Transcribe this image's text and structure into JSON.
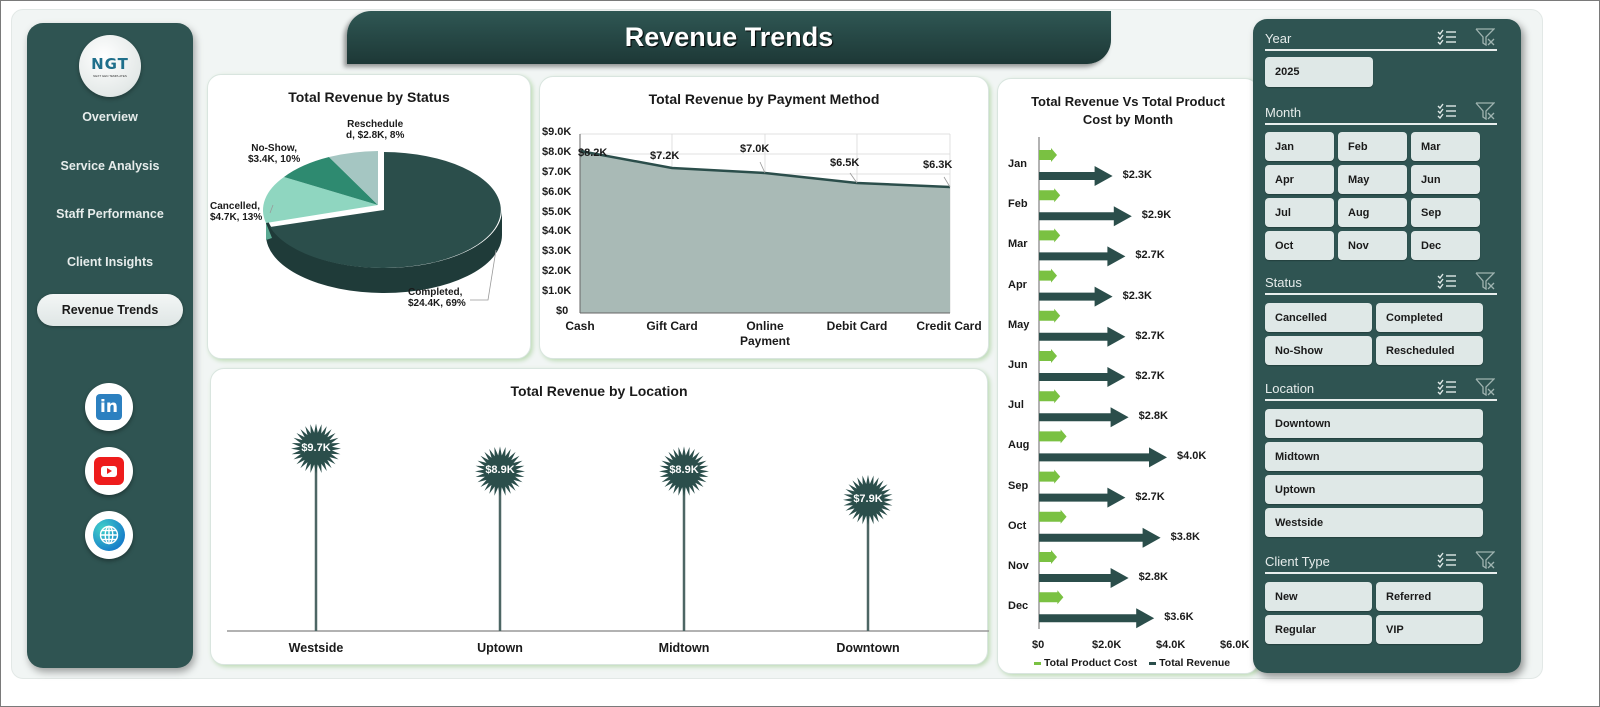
{
  "header": {
    "title": "Revenue Trends"
  },
  "sidebar": {
    "logo": {
      "text": "NGT",
      "subtext": "NEXT GEN TEMPLATES"
    },
    "items": [
      {
        "label": "Overview",
        "active": false
      },
      {
        "label": "Service Analysis",
        "active": false
      },
      {
        "label": "Staff Performance",
        "active": false
      },
      {
        "label": "Client Insights",
        "active": false
      },
      {
        "label": "Revenue Trends",
        "active": true
      }
    ],
    "social": [
      {
        "name": "linkedin-icon",
        "glyph": "in"
      },
      {
        "name": "youtube-icon"
      },
      {
        "name": "globe-icon"
      }
    ]
  },
  "filters": {
    "year": {
      "label": "Year",
      "options": [
        "2025"
      ]
    },
    "month": {
      "label": "Month",
      "options": [
        "Jan",
        "Feb",
        "Mar",
        "Apr",
        "May",
        "Jun",
        "Jul",
        "Aug",
        "Sep",
        "Oct",
        "Nov",
        "Dec"
      ]
    },
    "status": {
      "label": "Status",
      "options": [
        "Cancelled",
        "Completed",
        "No-Show",
        "Rescheduled"
      ]
    },
    "location": {
      "label": "Location",
      "options": [
        "Downtown",
        "Midtown",
        "Uptown",
        "Westside"
      ]
    },
    "client_type": {
      "label": "Client Type",
      "options": [
        "New",
        "Referred",
        "Regular",
        "VIP"
      ]
    }
  },
  "colors": {
    "primary_dark": "#2f5452",
    "accent_green": "#7ac142",
    "pie": [
      "#2b4e4b",
      "#8fd6c0",
      "#2e8a70",
      "#a5c6c2"
    ],
    "area_fill": "#a9bab6",
    "area_line": "#2b4e4b"
  },
  "chart_data": [
    {
      "type": "pie",
      "title": "Total Revenue  by Status",
      "categories": [
        "Completed",
        "Cancelled",
        "No-Show",
        "Rescheduled"
      ],
      "values": [
        24.4,
        4.7,
        3.4,
        2.8
      ],
      "value_labels": [
        "$24.4K",
        "$4.7K",
        "$3.4K",
        "$2.8K"
      ],
      "percents": [
        69,
        13,
        10,
        8
      ],
      "data_labels": [
        "Completed,",
        "$24.4K, 69%",
        "Cancelled,",
        "$4.7K, 13%",
        "No-Show,",
        "$3.4K, 10%",
        "Reschedule",
        "d, $2.8K, 8%"
      ]
    },
    {
      "type": "area",
      "title": "Total Revenue  by Payment Method",
      "categories": [
        "Cash",
        "Gift Card",
        "Online Payment",
        "Debit Card",
        "Credit Card"
      ],
      "category_lines": [
        [
          "Cash"
        ],
        [
          "Gift Card"
        ],
        [
          "Online",
          "Payment"
        ],
        [
          "Debit Card"
        ],
        [
          "Credit Card"
        ]
      ],
      "values": [
        8.2,
        7.2,
        7.0,
        6.5,
        6.3
      ],
      "value_labels": [
        "$8.2K",
        "$7.2K",
        "$7.0K",
        "$6.5K",
        "$6.3K"
      ],
      "yticks": [
        "$0",
        "$1.0K",
        "$2.0K",
        "$3.0K",
        "$4.0K",
        "$5.0K",
        "$6.0K",
        "$7.0K",
        "$8.0K",
        "$9.0K"
      ],
      "ylim": [
        0,
        9
      ],
      "grid": true
    },
    {
      "type": "bar",
      "orientation": "horizontal",
      "title": "Total Revenue Vs Total Product Cost by Month",
      "categories": [
        "Jan",
        "Feb",
        "Mar",
        "Apr",
        "May",
        "Jun",
        "Jul",
        "Aug",
        "Sep",
        "Oct",
        "Nov",
        "Dec"
      ],
      "series": [
        {
          "name": "Total Product Cost",
          "values": [
            0.5,
            0.6,
            0.6,
            0.5,
            0.6,
            0.5,
            0.6,
            0.8,
            0.6,
            0.8,
            0.5,
            0.7
          ]
        },
        {
          "name": "Total Revenue",
          "values": [
            2.3,
            2.9,
            2.7,
            2.3,
            2.7,
            2.7,
            2.8,
            4.0,
            2.7,
            3.8,
            2.8,
            3.6
          ]
        }
      ],
      "value_labels": [
        "$2.3K",
        "$2.9K",
        "$2.7K",
        "$2.3K",
        "$2.7K",
        "$2.7K",
        "$2.8K",
        "$4.0K",
        "$2.7K",
        "$3.8K",
        "$2.8K",
        "$3.6K"
      ],
      "xticks": [
        "$0",
        "$2.0K",
        "$4.0K",
        "$6.0K"
      ],
      "xlim": [
        0,
        6
      ],
      "legend": [
        "Total Product Cost",
        "Total Revenue"
      ],
      "legend_position": "bottom"
    },
    {
      "type": "lollipop",
      "title": "Total Revenue  by Location",
      "categories": [
        "Westside",
        "Uptown",
        "Midtown",
        "Downtown"
      ],
      "values": [
        9.7,
        8.9,
        8.9,
        7.9
      ],
      "value_labels": [
        "$9.7K",
        "$8.9K",
        "$8.9K",
        "$7.9K"
      ]
    }
  ]
}
